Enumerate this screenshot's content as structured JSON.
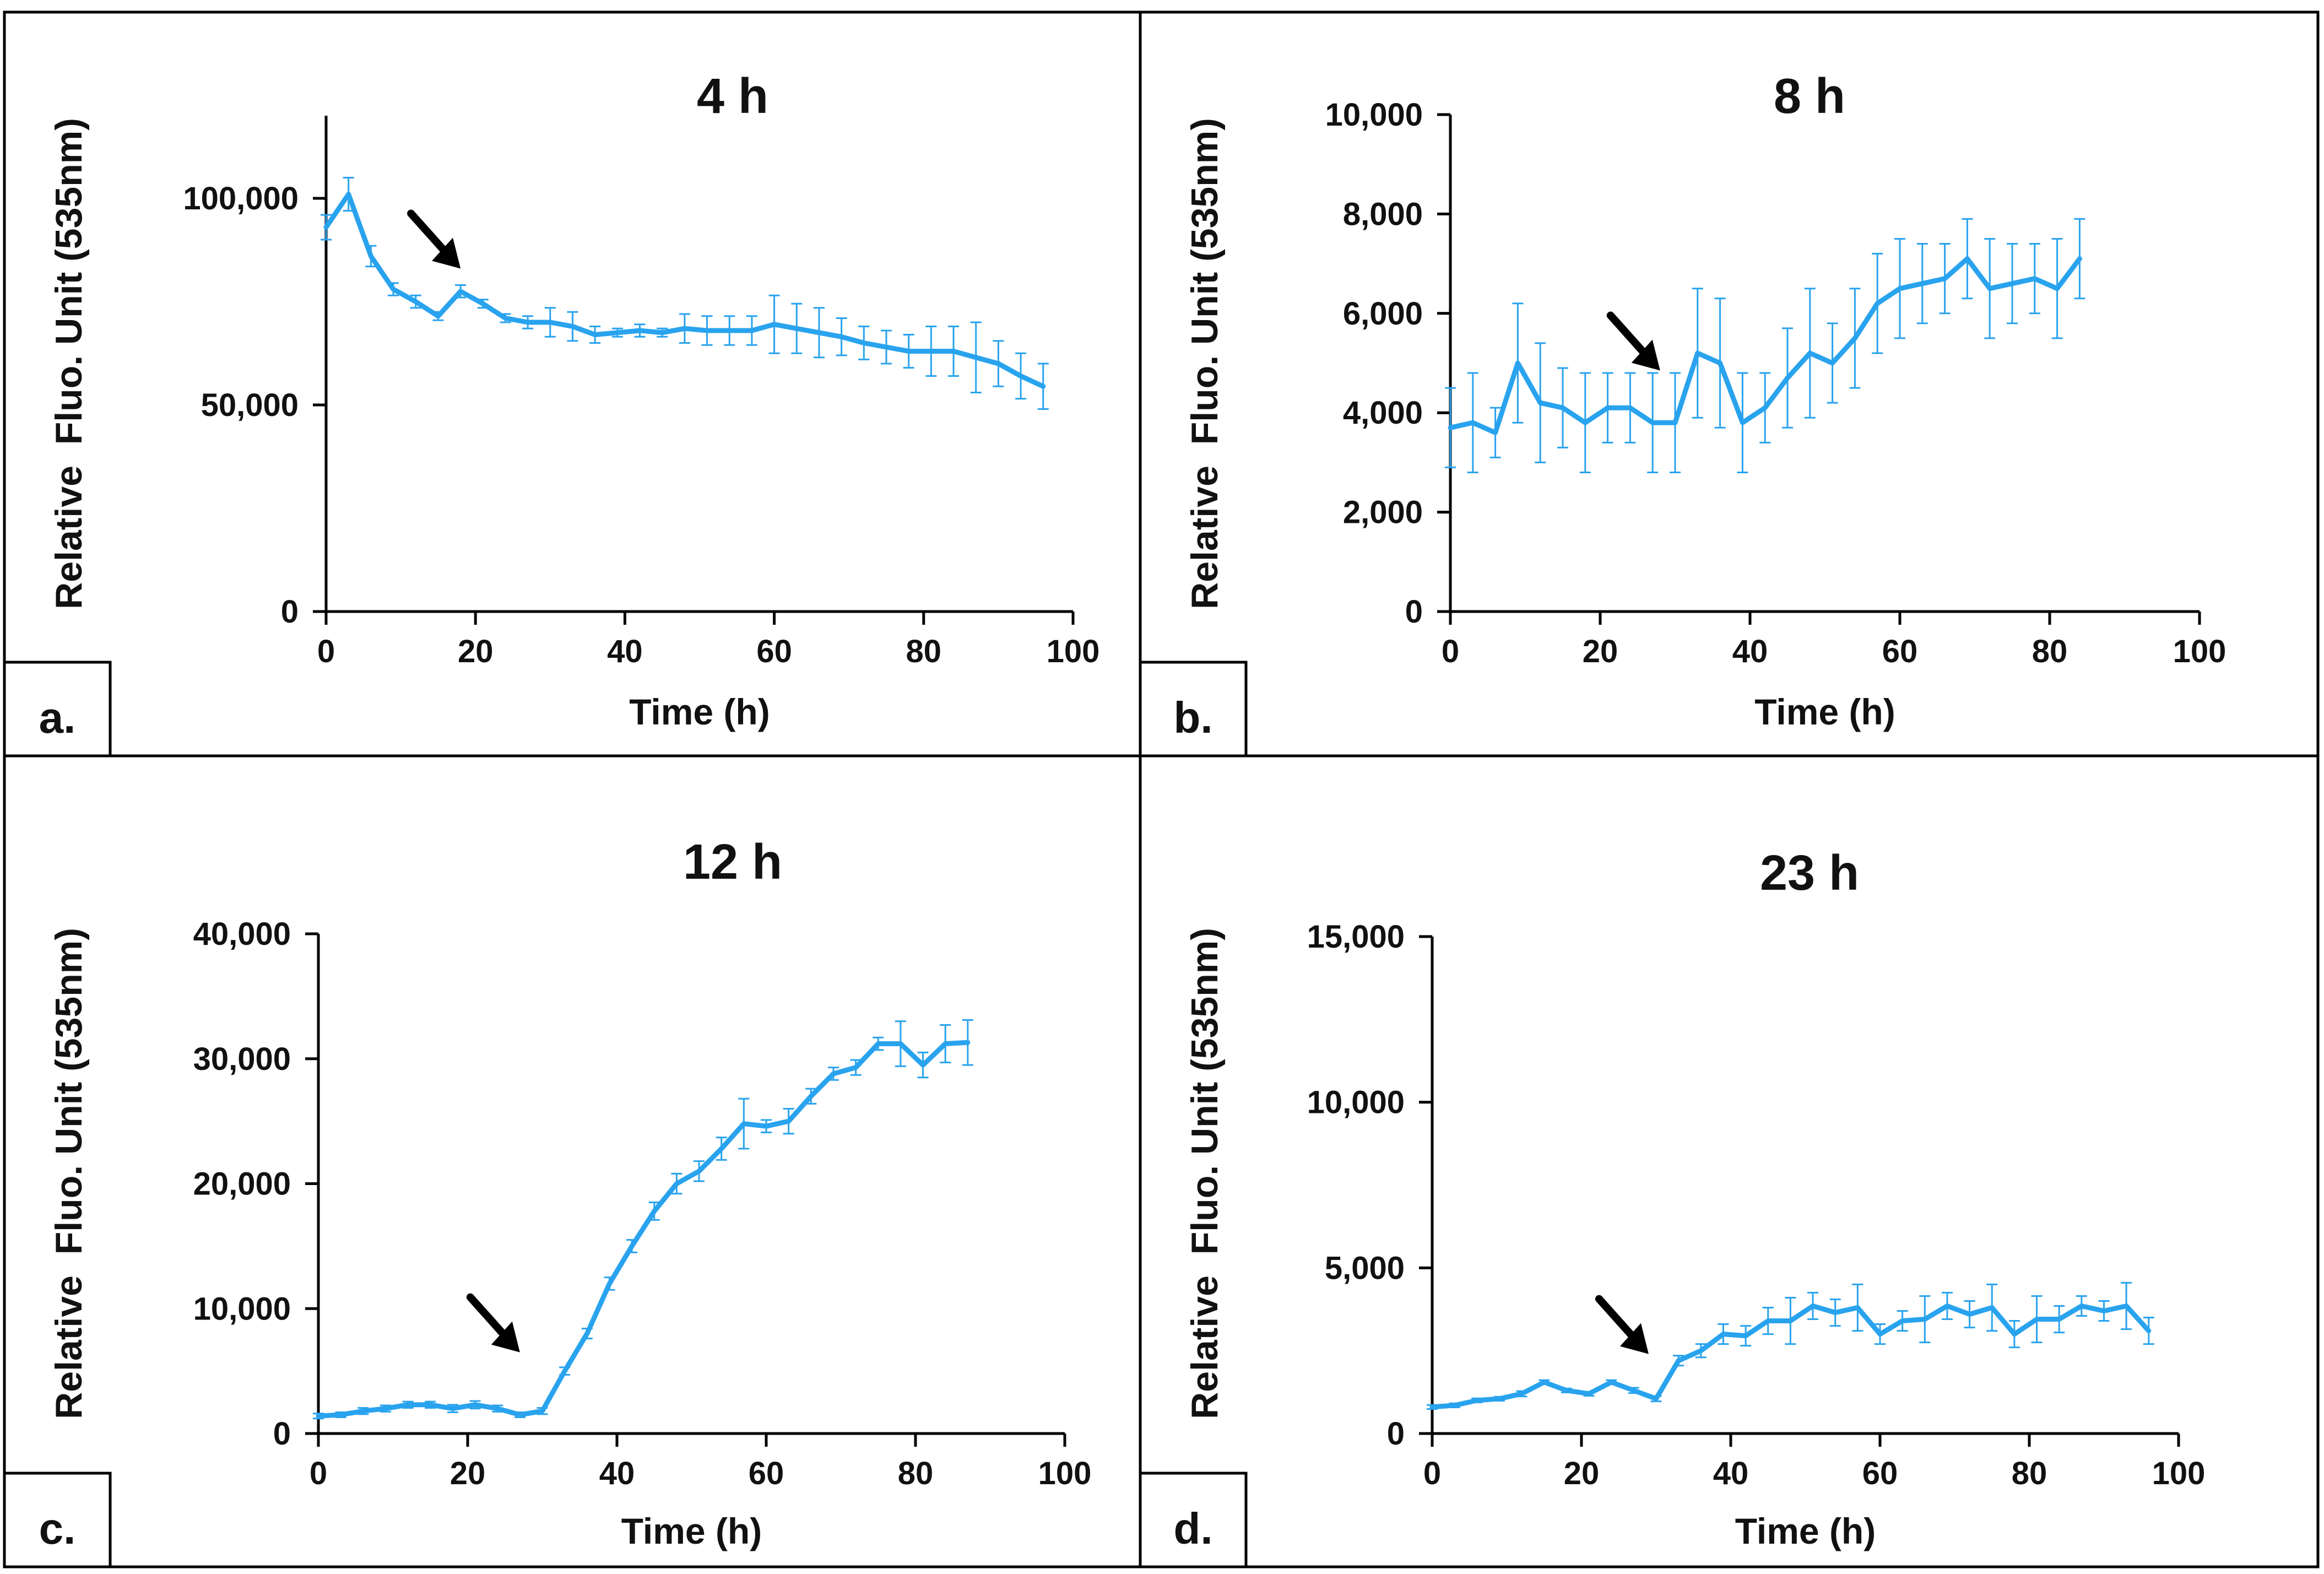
{
  "figure": {
    "series_color": "#29A3EE",
    "axis_color": "#000000",
    "arrow_color": "#000000"
  },
  "chart_data": [
    {
      "type": "line",
      "panel_label": "a.",
      "title": "4 h",
      "xlabel": "Time (h)",
      "ylabel": "Relative  Fluo. Unit (535nm)",
      "xlim": [
        0,
        100
      ],
      "ylim": [
        0,
        120000
      ],
      "xticks": [
        0,
        20,
        40,
        60,
        80,
        100
      ],
      "xtick_labels": [
        "0",
        "20",
        "40",
        "60",
        "80",
        "100"
      ],
      "yticks": [
        0,
        50000,
        100000
      ],
      "ytick_labels": [
        "0",
        "50,000",
        "100,000"
      ],
      "arrow_at": [
        18,
        83000
      ],
      "series": [
        {
          "name": "4 h",
          "x": [
            0,
            3,
            6,
            9,
            12,
            15,
            18,
            21,
            24,
            27,
            30,
            33,
            36,
            39,
            42,
            45,
            48,
            51,
            54,
            57,
            60,
            63,
            66,
            69,
            72,
            75,
            78,
            81,
            84,
            87,
            90,
            93,
            96
          ],
          "y": [
            93000,
            101000,
            86000,
            78000,
            75000,
            71500,
            77500,
            74500,
            71000,
            70000,
            70000,
            69000,
            67000,
            67500,
            68000,
            67500,
            68500,
            68000,
            68000,
            68000,
            69500,
            68500,
            67500,
            66500,
            65000,
            64000,
            63000,
            63000,
            63000,
            61500,
            60000,
            57000,
            54500
          ],
          "err": [
            3000,
            4000,
            2500,
            1500,
            1500,
            1000,
            1500,
            1000,
            1000,
            1500,
            3500,
            3500,
            2000,
            1000,
            1500,
            1000,
            3500,
            3500,
            3500,
            3500,
            7000,
            6000,
            6000,
            4500,
            4000,
            4000,
            4000,
            6000,
            6000,
            8500,
            5500,
            5500,
            5500
          ]
        }
      ]
    },
    {
      "type": "line",
      "panel_label": "b.",
      "title": "8 h",
      "xlabel": "Time (h)",
      "ylabel": "Relative  Fluo. Unit (535nm)",
      "xlim": [
        0,
        100
      ],
      "ylim": [
        0,
        10000
      ],
      "xticks": [
        0,
        20,
        40,
        60,
        80,
        100
      ],
      "xtick_labels": [
        "0",
        "20",
        "40",
        "60",
        "80",
        "100"
      ],
      "yticks": [
        0,
        2000,
        4000,
        6000,
        8000,
        10000
      ],
      "ytick_labels": [
        "0",
        "2,000",
        "4,000",
        "6,000",
        "8,000",
        "10,000"
      ],
      "arrow_at": [
        28,
        4850
      ],
      "series": [
        {
          "name": "8 h",
          "x": [
            0,
            3,
            6,
            9,
            12,
            15,
            18,
            21,
            24,
            27,
            30,
            33,
            36,
            39,
            42,
            45,
            48,
            51,
            54,
            57,
            60,
            63,
            66,
            69,
            72,
            75,
            78,
            81,
            84
          ],
          "y": [
            3700,
            3800,
            3600,
            5000,
            4200,
            4100,
            3800,
            4100,
            4100,
            3800,
            3800,
            5200,
            5000,
            3800,
            4100,
            4700,
            5200,
            5000,
            5500,
            6200,
            6500,
            6600,
            6700,
            7100,
            6500,
            6600,
            6700,
            6500,
            7100
          ],
          "err": [
            800,
            1000,
            500,
            1200,
            1200,
            800,
            1000,
            700,
            700,
            1000,
            1000,
            1300,
            1300,
            1000,
            700,
            1000,
            1300,
            800,
            1000,
            1000,
            1000,
            800,
            700,
            800,
            1000,
            800,
            700,
            1000,
            800
          ]
        }
      ]
    },
    {
      "type": "line",
      "panel_label": "c.",
      "title": "12 h",
      "xlabel": "Time (h)",
      "ylabel": "Relative  Fluo. Unit (535nm)",
      "xlim": [
        0,
        100
      ],
      "ylim": [
        0,
        40000
      ],
      "xticks": [
        0,
        20,
        40,
        60,
        80,
        100
      ],
      "xtick_labels": [
        "0",
        "20",
        "40",
        "60",
        "80",
        "100"
      ],
      "yticks": [
        0,
        10000,
        20000,
        30000,
        40000
      ],
      "ytick_labels": [
        "0",
        "10,000",
        "20,000",
        "30,000",
        "40,000"
      ],
      "arrow_at": [
        27,
        6500
      ],
      "series": [
        {
          "name": "12 h",
          "x": [
            0,
            3,
            6,
            9,
            12,
            15,
            18,
            21,
            24,
            27,
            30,
            33,
            36,
            39,
            42,
            45,
            48,
            51,
            54,
            57,
            60,
            63,
            66,
            69,
            72,
            75,
            78,
            81,
            84,
            87
          ],
          "y": [
            1400,
            1500,
            1800,
            2000,
            2300,
            2300,
            2000,
            2300,
            2000,
            1500,
            1800,
            5000,
            8000,
            12000,
            15000,
            17800,
            20000,
            21000,
            22800,
            24800,
            24600,
            25000,
            27000,
            28800,
            29300,
            31200,
            31200,
            29500,
            31200,
            31300
          ],
          "err": [
            200,
            200,
            250,
            250,
            250,
            250,
            300,
            300,
            250,
            200,
            250,
            300,
            400,
            500,
            500,
            700,
            800,
            800,
            900,
            2000,
            500,
            1000,
            600,
            500,
            600,
            500,
            1800,
            1000,
            1500,
            1800
          ]
        }
      ]
    },
    {
      "type": "line",
      "panel_label": "d.",
      "title": "23 h",
      "xlabel": "Time (h)",
      "ylabel": "Relative  Fluo. Unit (535nm)",
      "xlim": [
        0,
        100
      ],
      "ylim": [
        0,
        15000
      ],
      "xticks": [
        0,
        20,
        40,
        60,
        80,
        100
      ],
      "xtick_labels": [
        "0",
        "20",
        "40",
        "60",
        "80",
        "100"
      ],
      "yticks": [
        0,
        5000,
        10000,
        15000
      ],
      "ytick_labels": [
        "0",
        "5,000",
        "10,000",
        "15,000"
      ],
      "arrow_at": [
        29,
        2400
      ],
      "series": [
        {
          "name": "23 h",
          "x": [
            0,
            3,
            6,
            9,
            12,
            15,
            18,
            21,
            24,
            27,
            30,
            33,
            36,
            39,
            42,
            45,
            48,
            51,
            54,
            57,
            60,
            63,
            66,
            69,
            72,
            75,
            78,
            81,
            84,
            87,
            90,
            93,
            96
          ],
          "y": [
            800,
            850,
            1000,
            1050,
            1200,
            1550,
            1300,
            1200,
            1550,
            1300,
            1050,
            2200,
            2500,
            3000,
            2950,
            3400,
            3400,
            3850,
            3650,
            3800,
            3000,
            3400,
            3450,
            3850,
            3600,
            3800,
            3000,
            3450,
            3450,
            3850,
            3700,
            3850,
            3100
          ],
          "err": [
            60,
            60,
            60,
            60,
            80,
            60,
            60,
            60,
            60,
            80,
            80,
            150,
            200,
            300,
            300,
            400,
            700,
            400,
            400,
            700,
            300,
            300,
            700,
            400,
            400,
            700,
            400,
            700,
            400,
            300,
            300,
            700,
            400
          ]
        }
      ]
    }
  ]
}
